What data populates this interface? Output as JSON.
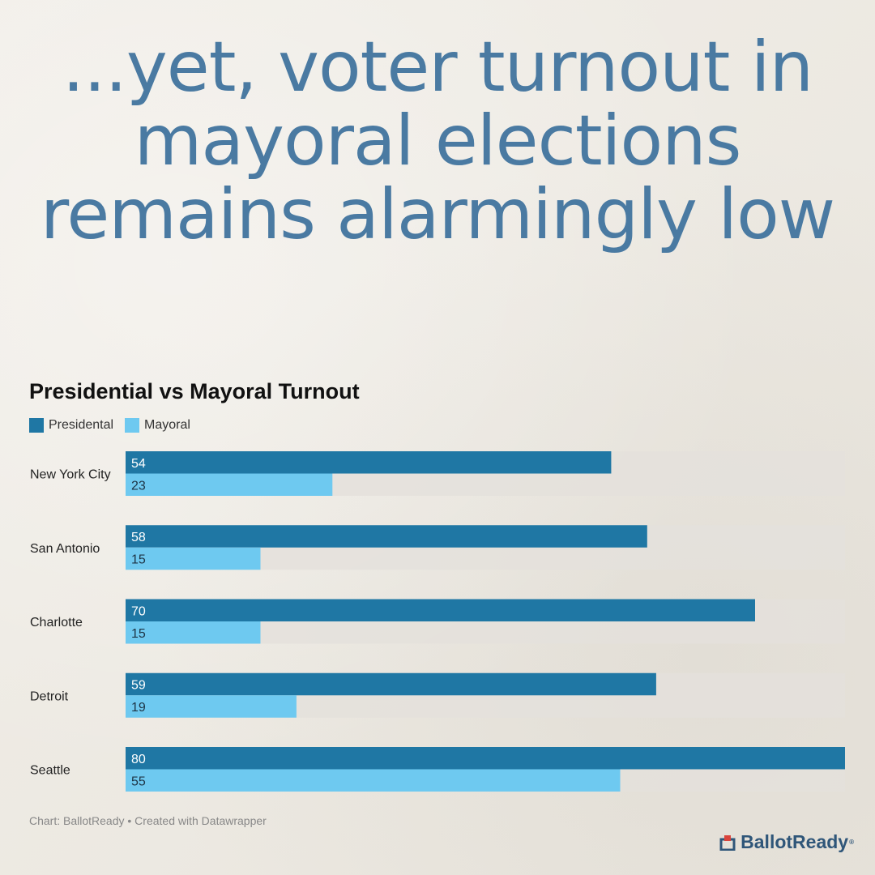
{
  "headline": "...yet, voter turnout in mayoral elections remains alarmingly low",
  "colors": {
    "presidential": "#1f77a4",
    "mayoral": "#6ec9f0",
    "track": "#e4e1dc",
    "headline": "#4a7aa2"
  },
  "chart_data": {
    "type": "bar",
    "orientation": "horizontal",
    "title": "Presidential vs Mayoral Turnout",
    "legend_placement": "top-left",
    "grid": false,
    "xlim": [
      0,
      80
    ],
    "categories": [
      "New York City",
      "San Antonio",
      "Charlotte",
      "Detroit",
      "Seattle"
    ],
    "series": [
      {
        "name": "Presidental",
        "values": [
          54,
          58,
          70,
          59,
          80
        ]
      },
      {
        "name": "Mayoral",
        "values": [
          23,
          15,
          15,
          19,
          55
        ]
      }
    ]
  },
  "source": "Chart: BallotReady • Created with Datawrapper",
  "brand": {
    "name": "BallotReady",
    "mark": "®",
    "logo_icon": "ballot-box-icon"
  }
}
